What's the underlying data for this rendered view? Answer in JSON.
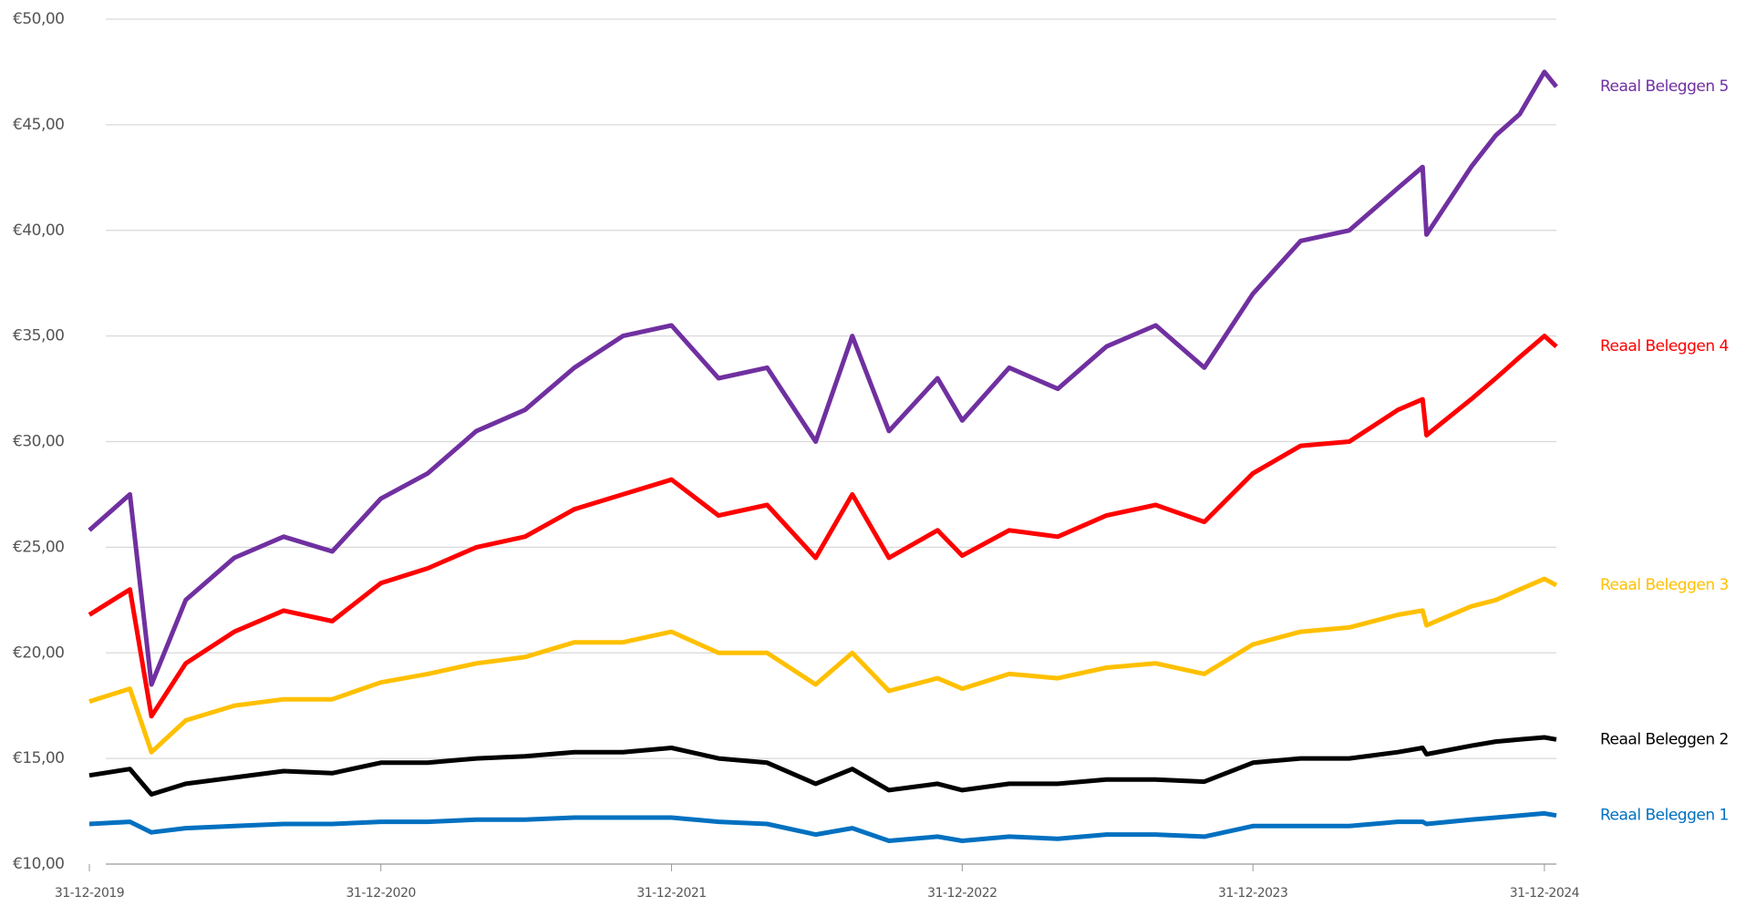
{
  "chart_data": {
    "type": "line",
    "x": [
      "31-12-2019",
      "20-02-2020",
      "18-03-2020",
      "30-04-2020",
      "30-06-2020",
      "31-08-2020",
      "31-10-2020",
      "31-12-2020",
      "28-02-2021",
      "30-04-2021",
      "30-06-2021",
      "31-08-2021",
      "31-10-2021",
      "31-12-2021",
      "28-02-2022",
      "30-04-2022",
      "30-06-2022",
      "15-08-2022",
      "30-09-2022",
      "30-11-2022",
      "31-12-2022",
      "28-02-2023",
      "30-04-2023",
      "30-06-2023",
      "31-08-2023",
      "31-10-2023",
      "31-12-2023",
      "29-02-2024",
      "30-04-2024",
      "30-06-2024",
      "31-07-2024",
      "05-08-2024",
      "30-09-2024",
      "31-10-2024",
      "30-11-2024",
      "31-12-2024",
      "15-01-2025"
    ],
    "series": [
      {
        "name": "Reaal Beleggen 5",
        "color": "#7030a0",
        "values": [
          25.8,
          27.5,
          18.5,
          22.5,
          24.5,
          25.5,
          24.8,
          27.3,
          28.5,
          30.5,
          31.5,
          33.5,
          35.0,
          35.5,
          33.0,
          33.5,
          30.0,
          35.0,
          30.5,
          33.0,
          31.0,
          33.5,
          32.5,
          34.5,
          35.5,
          33.5,
          37.0,
          39.5,
          40.0,
          42.0,
          43.0,
          39.8,
          43.0,
          44.5,
          45.5,
          47.5,
          46.8
        ]
      },
      {
        "name": "Reaal Beleggen 4",
        "color": "#ff0000",
        "values": [
          21.8,
          23.0,
          17.0,
          19.5,
          21.0,
          22.0,
          21.5,
          23.3,
          24.0,
          25.0,
          25.5,
          26.8,
          27.5,
          28.2,
          26.5,
          27.0,
          24.5,
          27.5,
          24.5,
          25.8,
          24.6,
          25.8,
          25.5,
          26.5,
          27.0,
          26.2,
          28.5,
          29.8,
          30.0,
          31.5,
          32.0,
          30.3,
          32.0,
          33.0,
          34.0,
          35.0,
          34.5
        ]
      },
      {
        "name": "Reaal Beleggen 3",
        "color": "#ffc000",
        "values": [
          17.7,
          18.3,
          15.3,
          16.8,
          17.5,
          17.8,
          17.8,
          18.6,
          19.0,
          19.5,
          19.8,
          20.5,
          20.5,
          21.0,
          20.0,
          20.0,
          18.5,
          20.0,
          18.2,
          18.8,
          18.3,
          19.0,
          18.8,
          19.3,
          19.5,
          19.0,
          20.4,
          21.0,
          21.2,
          21.8,
          22.0,
          21.3,
          22.2,
          22.5,
          23.0,
          23.5,
          23.2
        ]
      },
      {
        "name": "Reaal Beleggen 2",
        "color": "#000000",
        "values": [
          14.2,
          14.5,
          13.3,
          13.8,
          14.1,
          14.4,
          14.3,
          14.8,
          14.8,
          15.0,
          15.1,
          15.3,
          15.3,
          15.5,
          15.0,
          14.8,
          13.8,
          14.5,
          13.5,
          13.8,
          13.5,
          13.8,
          13.8,
          14.0,
          14.0,
          13.9,
          14.8,
          15.0,
          15.0,
          15.3,
          15.5,
          15.2,
          15.6,
          15.8,
          15.9,
          16.0,
          15.9
        ]
      },
      {
        "name": "Reaal Beleggen 1",
        "color": "#0070c0",
        "values": [
          11.9,
          12.0,
          11.5,
          11.7,
          11.8,
          11.9,
          11.9,
          12.0,
          12.0,
          12.1,
          12.1,
          12.2,
          12.2,
          12.2,
          12.0,
          11.9,
          11.4,
          11.7,
          11.1,
          11.3,
          11.1,
          11.3,
          11.2,
          11.4,
          11.4,
          11.3,
          11.8,
          11.8,
          11.8,
          12.0,
          12.0,
          11.9,
          12.1,
          12.2,
          12.3,
          12.4,
          12.3
        ]
      }
    ],
    "xlim": [
      "31-12-2019",
      "15-01-2025"
    ],
    "xticks": [
      "31-12-2019",
      "31-12-2020",
      "31-12-2021",
      "31-12-2022",
      "31-12-2023",
      "31-12-2024"
    ],
    "ylim": [
      10,
      50
    ],
    "yticks": [
      {
        "value": 10,
        "label": "€10,00"
      },
      {
        "value": 15,
        "label": "€15,00"
      },
      {
        "value": 20,
        "label": "€20,00"
      },
      {
        "value": 25,
        "label": "€25,00"
      },
      {
        "value": 30,
        "label": "€30,00"
      },
      {
        "value": 35,
        "label": "€35,00"
      },
      {
        "value": 40,
        "label": "€40,00"
      },
      {
        "value": 45,
        "label": "€45,00"
      },
      {
        "value": 50,
        "label": "€50,00"
      }
    ],
    "grid": true
  }
}
